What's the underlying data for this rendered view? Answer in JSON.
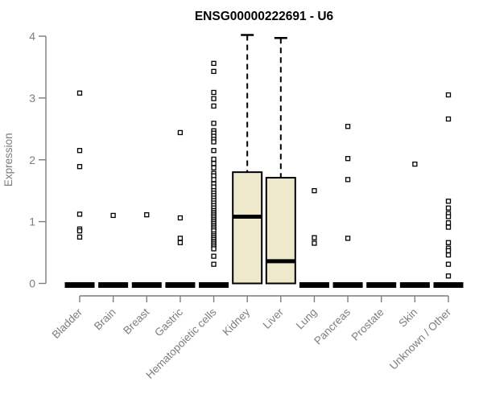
{
  "chart_data": {
    "type": "boxplot",
    "title": "ENSG00000222691 - U6",
    "xlabel": "",
    "ylabel": "Expression",
    "ylim": [
      0,
      4
    ],
    "yticks": [
      0,
      1,
      2,
      3,
      4
    ],
    "grid": false,
    "legend": "none",
    "categories": [
      "Bladder",
      "Brain",
      "Breast",
      "Gastric",
      "Hematopoietic cells",
      "Kidney",
      "Liver",
      "Lung",
      "Pancreas",
      "Prostate",
      "Skin",
      "Unknown / Other"
    ],
    "boxes": [
      {
        "category": "Bladder",
        "q1": 0,
        "median": 0,
        "q3": 0,
        "whisker_low": 0,
        "whisker_high": 0,
        "outliers": [
          3.08,
          2.15,
          1.89,
          1.12,
          0.88,
          0.85,
          0.75
        ]
      },
      {
        "category": "Brain",
        "q1": 0,
        "median": 0,
        "q3": 0,
        "whisker_low": 0,
        "whisker_high": 0,
        "outliers": [
          1.1
        ]
      },
      {
        "category": "Breast",
        "q1": 0,
        "median": 0,
        "q3": 0,
        "whisker_low": 0,
        "whisker_high": 0,
        "outliers": [
          1.11
        ]
      },
      {
        "category": "Gastric",
        "q1": 0,
        "median": 0,
        "q3": 0,
        "whisker_low": 0,
        "whisker_high": 0,
        "outliers": [
          2.44,
          1.06,
          0.73,
          0.66
        ]
      },
      {
        "category": "Hematopoietic cells",
        "q1": 0,
        "median": 0,
        "q3": 0,
        "whisker_low": 0,
        "whisker_high": 0,
        "outliers": [
          3.56,
          3.43,
          3.09,
          2.99,
          2.87,
          2.59,
          2.47,
          2.43,
          2.38,
          2.33,
          2.29,
          2.15,
          2.01,
          1.94,
          1.87,
          1.78,
          1.74,
          1.68,
          1.61,
          1.56,
          1.5,
          1.46,
          1.42,
          1.38,
          1.34,
          1.3,
          1.26,
          1.22,
          1.18,
          1.15,
          1.12,
          1.09,
          1.06,
          1.03,
          1.0,
          0.97,
          0.94,
          0.91,
          0.88,
          0.85,
          0.8,
          0.77,
          0.74,
          0.71,
          0.68,
          0.65,
          0.62,
          0.59,
          0.56,
          0.44,
          0.31
        ]
      },
      {
        "category": "Kidney",
        "q1": 0,
        "median": 1.08,
        "q3": 1.8,
        "whisker_low": 0,
        "whisker_high": 4.02,
        "outliers": []
      },
      {
        "category": "Liver",
        "q1": 0,
        "median": 0.36,
        "q3": 1.71,
        "whisker_low": 0,
        "whisker_high": 3.97,
        "outliers": []
      },
      {
        "category": "Lung",
        "q1": 0,
        "median": 0,
        "q3": 0,
        "whisker_low": 0,
        "whisker_high": 0,
        "outliers": [
          1.5,
          0.74,
          0.65
        ]
      },
      {
        "category": "Pancreas",
        "q1": 0,
        "median": 0,
        "q3": 0,
        "whisker_low": 0,
        "whisker_high": 0,
        "outliers": [
          2.54,
          2.02,
          1.68,
          0.73
        ]
      },
      {
        "category": "Prostate",
        "q1": 0,
        "median": 0,
        "q3": 0,
        "whisker_low": 0,
        "whisker_high": 0,
        "outliers": []
      },
      {
        "category": "Skin",
        "q1": 0,
        "median": 0,
        "q3": 0,
        "whisker_low": 0,
        "whisker_high": 0,
        "outliers": [
          1.93
        ]
      },
      {
        "category": "Unknown / Other",
        "q1": 0,
        "median": 0,
        "q3": 0,
        "whisker_low": 0,
        "whisker_high": 0,
        "outliers": [
          3.05,
          2.66,
          1.33,
          1.22,
          1.13,
          1.08,
          0.98,
          0.91,
          0.66,
          0.57,
          0.53,
          0.46,
          0.31,
          0.12
        ]
      }
    ],
    "style": {
      "box_fill": "#EEE8CD",
      "box_stroke": "#000000",
      "median_color": "#000000",
      "whisker_color": "#000000",
      "outlier_stroke": "#000000",
      "outlier_fill": "#ffffff",
      "axis_color": "#7d7d7d",
      "tick_label_color": "#7d7d7d",
      "axis_title_color": "#7d7d7d",
      "title_color": "#000000",
      "background": "#ffffff"
    }
  }
}
